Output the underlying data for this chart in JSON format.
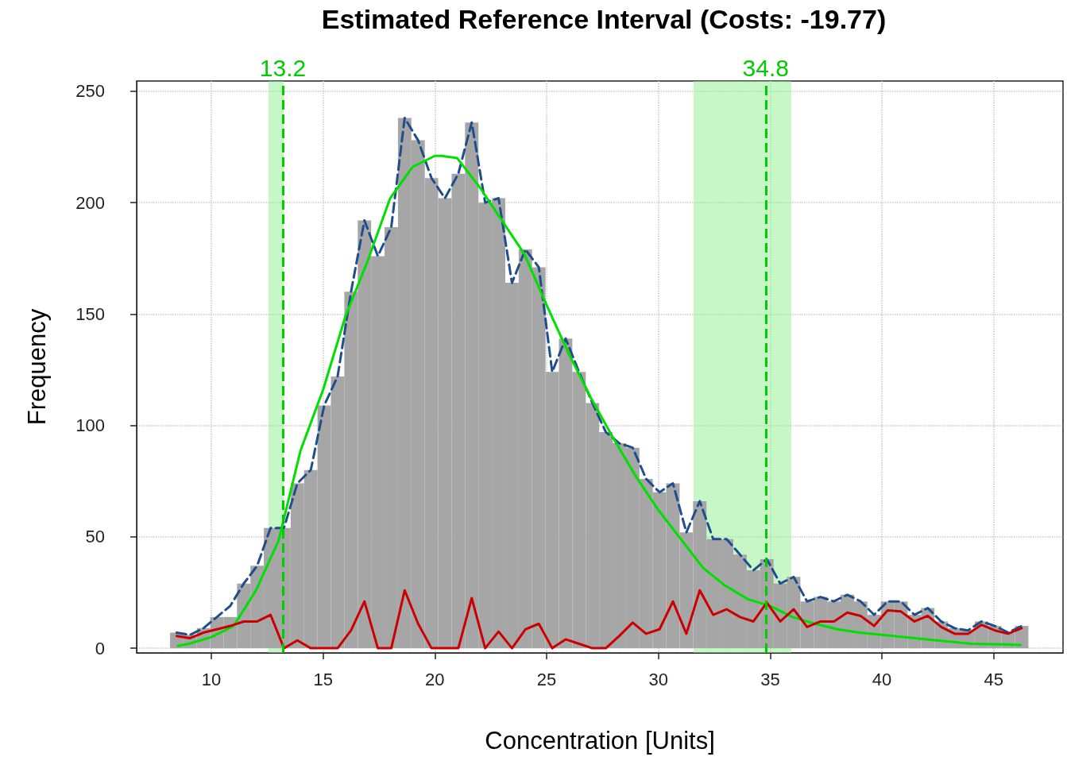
{
  "chart_data": {
    "type": "histogram",
    "title": "Estimated Reference Interval (Costs: -19.77)",
    "xlabel": "Concentration [Units]",
    "ylabel": "Frequency",
    "bins": [
      8.15,
      8.75,
      9.35,
      9.95,
      10.55,
      11.15,
      11.75,
      12.35,
      12.95,
      13.55,
      14.15,
      14.75,
      15.35,
      15.95,
      16.55,
      17.15,
      17.75,
      18.35,
      18.95,
      19.55,
      20.15,
      20.75,
      21.35,
      21.95,
      22.55,
      23.15,
      23.75,
      24.35,
      24.95,
      25.55,
      26.15,
      26.75,
      27.35,
      27.95,
      28.55,
      29.15,
      29.75,
      30.35,
      30.95,
      31.55,
      32.15,
      32.75,
      33.35,
      33.95,
      34.55,
      35.15,
      35.75,
      36.35,
      36.95,
      37.55,
      38.15,
      38.75,
      39.35,
      39.95,
      40.55,
      41.15,
      41.75,
      42.35,
      42.95,
      43.55,
      44.15,
      44.75,
      45.35,
      45.95,
      46.55
    ],
    "values": [
      7,
      6,
      9,
      14,
      14,
      29,
      37,
      54,
      54,
      74,
      80,
      109,
      122,
      160,
      192,
      176,
      189,
      238,
      228,
      211,
      202,
      213,
      236,
      200,
      202,
      164,
      179,
      171,
      124,
      139,
      124,
      110,
      97,
      92,
      90,
      76,
      70,
      74,
      52,
      66,
      49,
      49,
      42,
      35,
      40,
      29,
      32,
      21,
      23,
      21,
      24,
      21,
      15,
      21,
      21,
      15,
      18,
      12,
      9,
      8,
      12,
      10,
      7,
      10
    ],
    "color": "#a6a6a6",
    "series": [
      {
        "type": "line",
        "color": "#1f4e8c",
        "line_style": "dashed",
        "x": [
          8.45,
          9.05,
          9.65,
          10.25,
          10.85,
          11.45,
          12.05,
          12.65,
          13.25,
          13.85,
          14.45,
          15.05,
          15.65,
          16.25,
          16.85,
          17.45,
          18.05,
          18.65,
          19.25,
          19.85,
          20.45,
          21.05,
          21.65,
          22.25,
          22.85,
          23.45,
          24.05,
          24.65,
          25.25,
          25.85,
          26.45,
          27.05,
          27.65,
          28.25,
          28.85,
          29.45,
          30.05,
          30.65,
          31.25,
          31.85,
          32.45,
          33.05,
          33.65,
          34.25,
          34.85,
          35.45,
          36.05,
          36.65,
          37.25,
          37.85,
          38.45,
          39.05,
          39.65,
          40.25,
          40.85,
          41.45,
          42.05,
          42.65,
          43.25,
          43.85,
          44.45,
          45.05,
          45.65,
          46.25
        ],
        "values": [
          7,
          6,
          9,
          14,
          19,
          29,
          37,
          54,
          54,
          74,
          80,
          109,
          122,
          160,
          192,
          176,
          189,
          238,
          228,
          211,
          202,
          213,
          236,
          200,
          202,
          164,
          179,
          171,
          124,
          139,
          124,
          110,
          97,
          92,
          90,
          76,
          70,
          74,
          52,
          66,
          49,
          49,
          42,
          35,
          40,
          29,
          32,
          21,
          23,
          21,
          24,
          21,
          15,
          21,
          21,
          15,
          18,
          12,
          9,
          8,
          12,
          10,
          7,
          10
        ]
      },
      {
        "type": "line",
        "color": "#00e000",
        "line_style": "solid",
        "x": [
          8.5,
          9,
          10,
          11,
          12,
          13,
          14,
          15,
          16,
          17,
          18,
          19,
          20,
          20.3,
          21,
          22,
          23,
          24,
          25,
          26,
          27,
          28,
          29,
          30,
          31,
          32,
          33,
          34,
          35,
          36,
          37,
          38,
          39,
          40,
          42,
          44,
          46.2
        ],
        "values": [
          1,
          2,
          5,
          10,
          26,
          48,
          89,
          116,
          149,
          174,
          202,
          216,
          221,
          221,
          220,
          207,
          192,
          177,
          154,
          132,
          112,
          94,
          77,
          62,
          49,
          36,
          28,
          22,
          19,
          14,
          11,
          8.5,
          7,
          6,
          4,
          2,
          1.5
        ]
      },
      {
        "type": "line",
        "color": "#cc0000",
        "line_style": "solid",
        "x": [
          8.45,
          9.05,
          9.65,
          10.25,
          10.85,
          11.45,
          12.05,
          12.65,
          13.25,
          13.85,
          14.45,
          15.05,
          15.65,
          16.25,
          16.85,
          17.45,
          18.05,
          18.65,
          19.25,
          19.85,
          20.45,
          21.05,
          21.65,
          22.25,
          22.85,
          23.45,
          24.05,
          24.65,
          25.25,
          25.85,
          26.45,
          27.05,
          27.65,
          28.25,
          28.85,
          29.45,
          30.05,
          30.65,
          31.25,
          31.85,
          32.45,
          33.05,
          33.65,
          34.25,
          34.85,
          35.45,
          36.05,
          36.65,
          37.25,
          37.85,
          38.45,
          39.05,
          39.65,
          40.25,
          40.85,
          41.45,
          42.05,
          42.65,
          43.25,
          43.85,
          44.45,
          45.05,
          45.65,
          46.25
        ],
        "values": [
          5.5,
          4.5,
          7,
          8.5,
          10,
          12,
          12,
          15,
          0,
          3.5,
          0,
          0,
          0,
          8,
          21,
          0,
          0,
          26,
          11,
          0,
          0,
          0,
          22.5,
          0,
          7.5,
          0,
          8.5,
          11,
          0,
          4,
          2,
          0,
          0,
          5.5,
          11.5,
          6.5,
          8.5,
          21,
          6.5,
          26,
          15,
          17.5,
          14,
          12,
          20.5,
          12,
          17.5,
          9.5,
          12,
          12,
          16,
          14.5,
          10,
          17,
          16.5,
          12,
          14.5,
          9.5,
          6.5,
          6.5,
          10.5,
          8,
          6.5,
          9
        ]
      }
    ],
    "xlim": [
      6.66,
      48.1
    ],
    "xticks": [
      10,
      15,
      20,
      25,
      30,
      35,
      40,
      45
    ],
    "ylim": [
      -2.1,
      254.6
    ],
    "yticks": [
      0,
      50,
      100,
      150,
      200,
      250
    ],
    "grid": true,
    "ref_lines": [
      {
        "axis": "x",
        "value": 13.2,
        "label": "13.2",
        "color": "#00cc00",
        "line_style": "dashed"
      },
      {
        "axis": "x",
        "value": 34.8,
        "label": "34.8",
        "color": "#00cc00",
        "line_style": "dashed"
      }
    ],
    "bands": [
      {
        "axis": "x",
        "from": 12.56,
        "to": 13.23,
        "color": "#90ee90"
      },
      {
        "axis": "x",
        "from": 31.57,
        "to": 35.94,
        "color": "#90ee90"
      }
    ]
  }
}
